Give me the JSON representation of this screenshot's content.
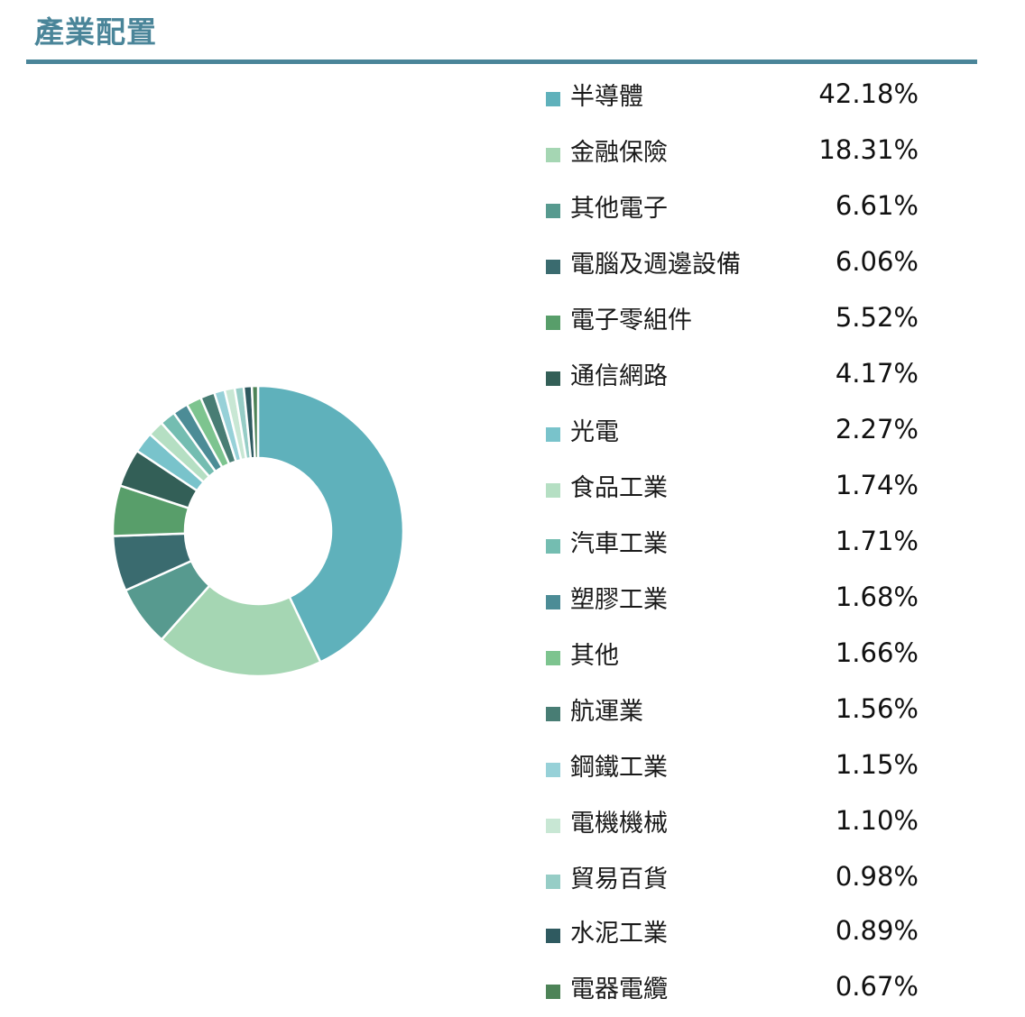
{
  "header": {
    "title": "產業配置"
  },
  "chart_data": {
    "type": "pie",
    "subtype": "donut",
    "title": "產業配置",
    "unit": "%",
    "legend_position": "right",
    "categories": [
      "半導體",
      "金融保險",
      "其他電子",
      "電腦及週邊設備",
      "電子零組件",
      "通信網路",
      "光電",
      "食品工業",
      "汽車工業",
      "塑膠工業",
      "其他",
      "航運業",
      "鋼鐵工業",
      "電機機械",
      "貿易百貨",
      "水泥工業",
      "電器電纜"
    ],
    "values": [
      42.18,
      18.31,
      6.61,
      6.06,
      5.52,
      4.17,
      2.27,
      1.74,
      1.71,
      1.68,
      1.66,
      1.56,
      1.15,
      1.1,
      0.98,
      0.89,
      0.67
    ],
    "colors": [
      "#5fb1bb",
      "#a5d6b3",
      "#579a8f",
      "#3a6b6f",
      "#589e6a",
      "#335f57",
      "#79c3cb",
      "#b5dfc3",
      "#74bdb1",
      "#4c8c96",
      "#7dc48f",
      "#487d74",
      "#97d1d8",
      "#c8e7d4",
      "#96cdc6",
      "#2f5a60",
      "#4d8357"
    ],
    "start_angle_deg": 0,
    "direction": "clockwise"
  },
  "legend": {
    "items": [
      {
        "label": "半導體",
        "value": "42.18%",
        "color": "#5fb1bb"
      },
      {
        "label": "金融保險",
        "value": "18.31%",
        "color": "#a5d6b3"
      },
      {
        "label": "其他電子",
        "value": "6.61%",
        "color": "#579a8f"
      },
      {
        "label": "電腦及週邊設備",
        "value": "6.06%",
        "color": "#3a6b6f"
      },
      {
        "label": "電子零組件",
        "value": "5.52%",
        "color": "#589e6a"
      },
      {
        "label": "通信網路",
        "value": "4.17%",
        "color": "#335f57"
      },
      {
        "label": "光電",
        "value": "2.27%",
        "color": "#79c3cb"
      },
      {
        "label": "食品工業",
        "value": "1.74%",
        "color": "#b5dfc3"
      },
      {
        "label": "汽車工業",
        "value": "1.71%",
        "color": "#74bdb1"
      },
      {
        "label": "塑膠工業",
        "value": "1.68%",
        "color": "#4c8c96"
      },
      {
        "label": "其他",
        "value": "1.66%",
        "color": "#7dc48f"
      },
      {
        "label": "航運業",
        "value": "1.56%",
        "color": "#487d74"
      },
      {
        "label": "鋼鐵工業",
        "value": "1.15%",
        "color": "#97d1d8"
      },
      {
        "label": "電機機械",
        "value": "1.10%",
        "color": "#c8e7d4"
      },
      {
        "label": "貿易百貨",
        "value": "0.98%",
        "color": "#96cdc6"
      },
      {
        "label": "水泥工業",
        "value": "0.89%",
        "color": "#2f5a60"
      },
      {
        "label": "電器電纜",
        "value": "0.67%",
        "color": "#4d8357"
      }
    ]
  },
  "theme": {
    "accent": "#4a8599"
  }
}
